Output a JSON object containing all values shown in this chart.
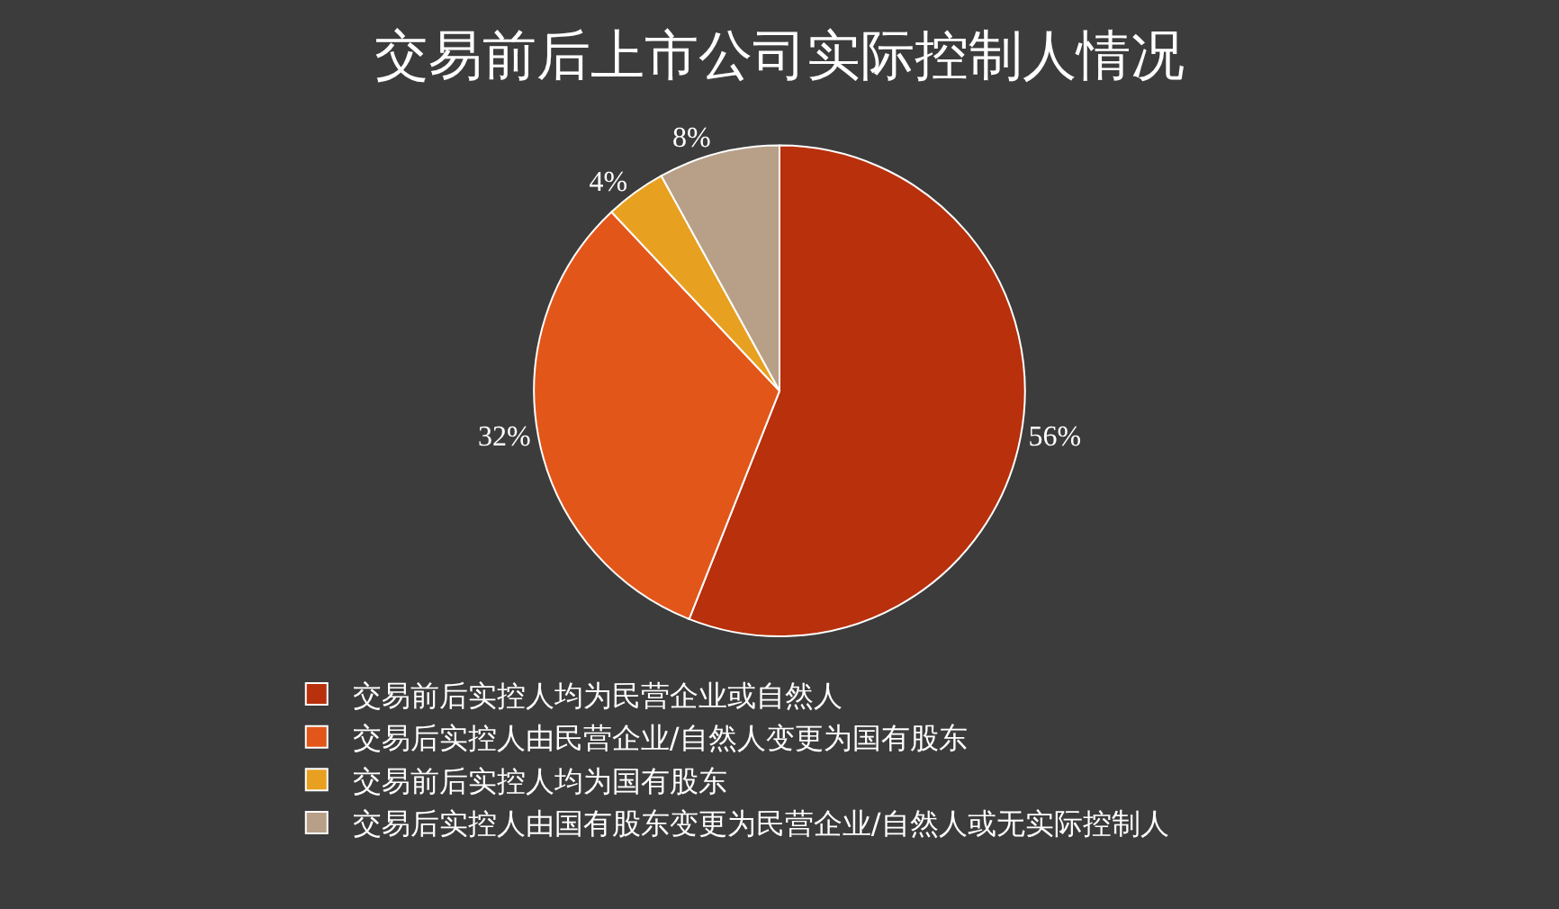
{
  "chart_data": {
    "type": "pie",
    "title": "交易前后上市公司实际控制人情况",
    "categories": [
      "交易前后实控人均为民营企业或自然人",
      "交易后实控人由民营企业/自然人变更为国有股东",
      "交易前后实控人均为国有股东",
      "交易后实控人由国有股东变更为民营企业/自然人或无实际控制人"
    ],
    "values": [
      56,
      32,
      4,
      8
    ],
    "colors": [
      "#b8300c",
      "#e2561a",
      "#e8a020",
      "#b8a088"
    ],
    "value_labels": [
      "56%",
      "32%",
      "4%",
      "8%"
    ],
    "legend": "bottom"
  }
}
